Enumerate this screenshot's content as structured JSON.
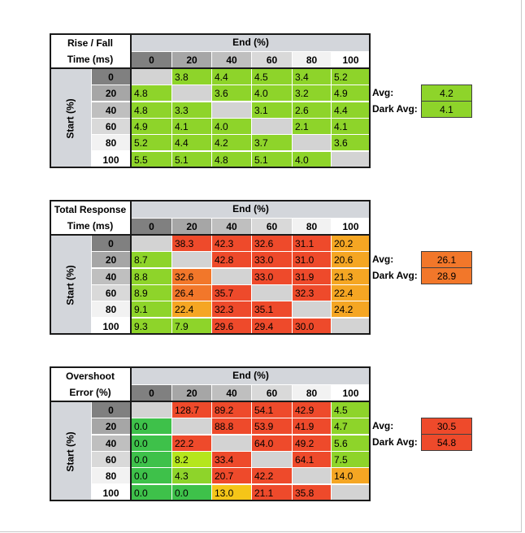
{
  "tables": [
    {
      "title_line1": "Rise / Fall",
      "title_line2": "Time (ms)",
      "end_header": "End (%)",
      "start_header": "Start (%)",
      "columns": [
        "0",
        "20",
        "40",
        "60",
        "80",
        "100"
      ],
      "rows": [
        "0",
        "20",
        "40",
        "60",
        "80",
        "100"
      ],
      "values": [
        [
          "",
          "3.8",
          "4.4",
          "4.5",
          "3.4",
          "5.2"
        ],
        [
          "4.8",
          "",
          "3.6",
          "4.0",
          "3.2",
          "4.9"
        ],
        [
          "4.8",
          "3.3",
          "",
          "3.1",
          "2.6",
          "4.4"
        ],
        [
          "4.9",
          "4.1",
          "4.0",
          "",
          "2.1",
          "4.1"
        ],
        [
          "5.2",
          "4.4",
          "4.2",
          "3.7",
          "",
          "3.6"
        ],
        [
          "5.5",
          "5.1",
          "4.8",
          "5.1",
          "4.0",
          ""
        ]
      ],
      "colors": [
        [
          "#d3d3d3",
          "#8ed42a",
          "#8ed42a",
          "#8ed42a",
          "#8ed42a",
          "#8ed42a"
        ],
        [
          "#8ed42a",
          "#d3d3d3",
          "#8ed42a",
          "#8ed42a",
          "#8ed42a",
          "#8ed42a"
        ],
        [
          "#8ed42a",
          "#8ed42a",
          "#d3d3d3",
          "#8ed42a",
          "#8ed42a",
          "#8ed42a"
        ],
        [
          "#8ed42a",
          "#8ed42a",
          "#8ed42a",
          "#d3d3d3",
          "#8ed42a",
          "#8ed42a"
        ],
        [
          "#8ed42a",
          "#8ed42a",
          "#8ed42a",
          "#8ed42a",
          "#d3d3d3",
          "#8ed42a"
        ],
        [
          "#8ed42a",
          "#8ed42a",
          "#8ed42a",
          "#8ed42a",
          "#8ed42a",
          "#d3d3d3"
        ]
      ],
      "avg_label": "Avg:",
      "avg_value": "4.2",
      "avg_color": "#8ed42a",
      "dark_avg_label": "Dark Avg:",
      "dark_avg_value": "4.1",
      "dark_avg_color": "#8ed42a"
    },
    {
      "title_line1": "Total Response",
      "title_line2": "Time (ms)",
      "end_header": "End (%)",
      "start_header": "Start (%)",
      "columns": [
        "0",
        "20",
        "40",
        "60",
        "80",
        "100"
      ],
      "rows": [
        "0",
        "20",
        "40",
        "60",
        "80",
        "100"
      ],
      "values": [
        [
          "",
          "38.3",
          "42.3",
          "32.6",
          "31.1",
          "20.2"
        ],
        [
          "8.7",
          "",
          "42.8",
          "33.0",
          "31.0",
          "20.6"
        ],
        [
          "8.8",
          "32.6",
          "",
          "33.0",
          "31.9",
          "21.3"
        ],
        [
          "8.9",
          "26.4",
          "35.7",
          "",
          "32.3",
          "22.4"
        ],
        [
          "9.1",
          "22.4",
          "32.3",
          "35.1",
          "",
          "24.2"
        ],
        [
          "9.3",
          "7.9",
          "29.6",
          "29.4",
          "30.0",
          ""
        ]
      ],
      "colors": [
        [
          "#d3d3d3",
          "#ee4a2b",
          "#ee4a2b",
          "#ee4a2b",
          "#ee4a2b",
          "#f5a623"
        ],
        [
          "#8ed42a",
          "#d3d3d3",
          "#ee4a2b",
          "#ee4a2b",
          "#ee4a2b",
          "#f5a623"
        ],
        [
          "#8ed42a",
          "#f2772a",
          "#d3d3d3",
          "#ee4a2b",
          "#ee4a2b",
          "#f5a623"
        ],
        [
          "#8ed42a",
          "#f2772a",
          "#ee4a2b",
          "#d3d3d3",
          "#ee4a2b",
          "#f5a623"
        ],
        [
          "#8ed42a",
          "#f5a623",
          "#ee4a2b",
          "#ee4a2b",
          "#d3d3d3",
          "#f5a623"
        ],
        [
          "#8ed42a",
          "#8ed42a",
          "#ee4a2b",
          "#ee4a2b",
          "#ee4a2b",
          "#d3d3d3"
        ]
      ],
      "avg_label": "Avg:",
      "avg_value": "26.1",
      "avg_color": "#f2772a",
      "dark_avg_label": "Dark Avg:",
      "dark_avg_value": "28.9",
      "dark_avg_color": "#f2772a"
    },
    {
      "title_line1": "Overshoot",
      "title_line2": "Error (%)",
      "end_header": "End (%)",
      "start_header": "Start (%)",
      "columns": [
        "0",
        "20",
        "40",
        "60",
        "80",
        "100"
      ],
      "rows": [
        "0",
        "20",
        "40",
        "60",
        "80",
        "100"
      ],
      "values": [
        [
          "",
          "128.7",
          "89.2",
          "54.1",
          "42.9",
          "4.5"
        ],
        [
          "0.0",
          "",
          "88.8",
          "53.9",
          "41.9",
          "4.7"
        ],
        [
          "0.0",
          "22.2",
          "",
          "64.0",
          "49.2",
          "5.6"
        ],
        [
          "0.0",
          "8.2",
          "33.4",
          "",
          "64.1",
          "7.5"
        ],
        [
          "0.0",
          "4.3",
          "20.7",
          "42.2",
          "",
          "14.0"
        ],
        [
          "0.0",
          "0.0",
          "13.0",
          "21.1",
          "35.8",
          ""
        ]
      ],
      "colors": [
        [
          "#d3d3d3",
          "#ee4a2b",
          "#ee4a2b",
          "#ee4a2b",
          "#ee4a2b",
          "#8ed42a"
        ],
        [
          "#3ec14a",
          "#d3d3d3",
          "#ee4a2b",
          "#ee4a2b",
          "#ee4a2b",
          "#8ed42a"
        ],
        [
          "#3ec14a",
          "#ee4a2b",
          "#d3d3d3",
          "#ee4a2b",
          "#ee4a2b",
          "#8ed42a"
        ],
        [
          "#3ec14a",
          "#b5e61d",
          "#ee4a2b",
          "#d3d3d3",
          "#ee4a2b",
          "#8ed42a"
        ],
        [
          "#3ec14a",
          "#8ed42a",
          "#ee4a2b",
          "#ee4a2b",
          "#d3d3d3",
          "#f5a623"
        ],
        [
          "#3ec14a",
          "#3ec14a",
          "#f5c518",
          "#ee4a2b",
          "#ee4a2b",
          "#d3d3d3"
        ]
      ],
      "avg_label": "Avg:",
      "avg_value": "30.5",
      "avg_color": "#ee4a2b",
      "dark_avg_label": "Dark Avg:",
      "dark_avg_value": "54.8",
      "dark_avg_color": "#ee4a2b"
    }
  ],
  "header_colors": {
    "end_band": "#d3d6db",
    "col_header_bg": [
      "#808080",
      "#a6a6a6",
      "#bfbfbf",
      "#d9d9d9",
      "#f2f2f2",
      "#ffffff"
    ],
    "col_header_fg": [
      "#000000",
      "#000000",
      "#000000",
      "#000000",
      "#000000",
      "#000000"
    ],
    "row_header_bg": [
      "#808080",
      "#a6a6a6",
      "#bfbfbf",
      "#d9d9d9",
      "#f2f2f2",
      "#ffffff"
    ]
  }
}
